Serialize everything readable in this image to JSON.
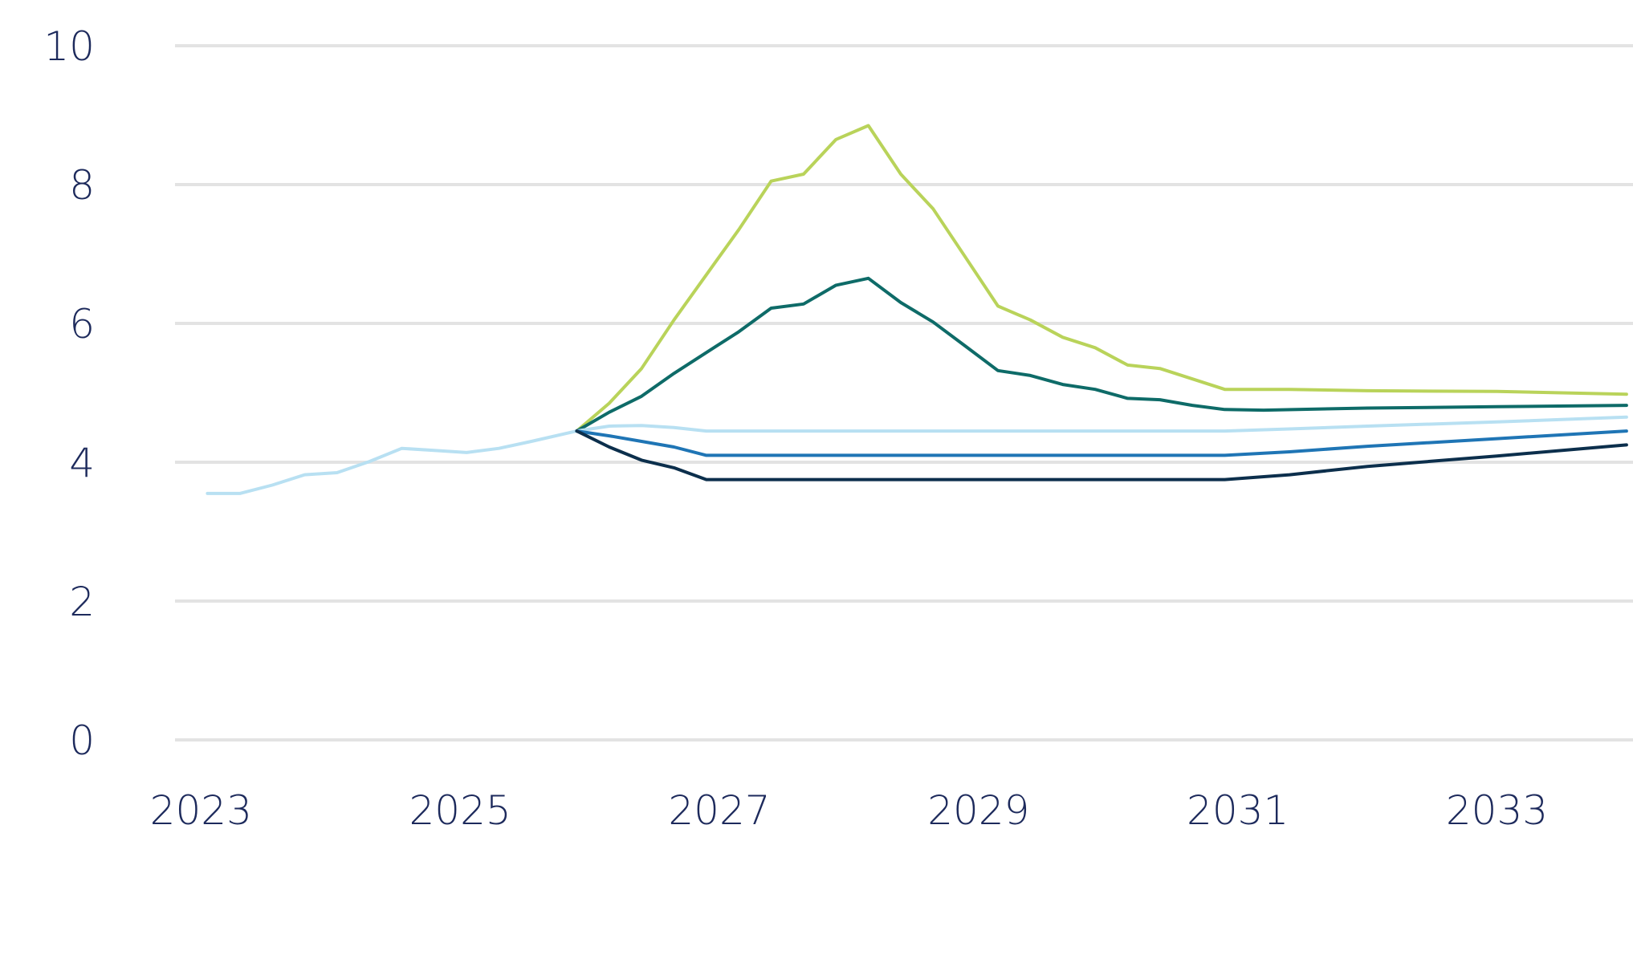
{
  "chart_data": {
    "type": "line",
    "title": "",
    "xlabel": "",
    "ylabel": "",
    "xlim": [
      2022.8,
      2034.05
    ],
    "ylim": [
      0,
      10
    ],
    "grid": true,
    "legend": "none",
    "y_ticks": [
      {
        "value": 0,
        "label": "0"
      },
      {
        "value": 2,
        "label": "2"
      },
      {
        "value": 4,
        "label": "4"
      },
      {
        "value": 6,
        "label": "6"
      },
      {
        "value": 8,
        "label": "8"
      },
      {
        "value": 10,
        "label": "10"
      }
    ],
    "x_ticks": [
      {
        "value": 2023,
        "label": "2023"
      },
      {
        "value": 2025,
        "label": "2025"
      },
      {
        "value": 2027,
        "label": "2027"
      },
      {
        "value": 2029,
        "label": "2029"
      },
      {
        "value": 2031,
        "label": "2031"
      },
      {
        "value": 2033,
        "label": "2033"
      }
    ],
    "series": [
      {
        "color": "#b9d35a",
        "points": [
          [
            2025.9,
            4.45
          ],
          [
            2026.15,
            4.85
          ],
          [
            2026.4,
            5.35
          ],
          [
            2026.65,
            6.05
          ],
          [
            2026.9,
            6.7
          ],
          [
            2027.15,
            7.35
          ],
          [
            2027.4,
            8.05
          ],
          [
            2027.65,
            8.15
          ],
          [
            2027.9,
            8.65
          ],
          [
            2028.15,
            8.85
          ],
          [
            2028.4,
            8.15
          ],
          [
            2028.65,
            7.65
          ],
          [
            2028.9,
            6.95
          ],
          [
            2029.15,
            6.25
          ],
          [
            2029.4,
            6.05
          ],
          [
            2029.65,
            5.8
          ],
          [
            2029.9,
            5.65
          ],
          [
            2030.15,
            5.4
          ],
          [
            2030.4,
            5.35
          ],
          [
            2030.65,
            5.2
          ],
          [
            2030.9,
            5.05
          ],
          [
            2031.4,
            5.05
          ],
          [
            2032.0,
            5.03
          ],
          [
            2033.0,
            5.02
          ],
          [
            2034.0,
            4.98
          ]
        ]
      },
      {
        "color": "#0e6b68",
        "points": [
          [
            2025.9,
            4.45
          ],
          [
            2026.15,
            4.72
          ],
          [
            2026.4,
            4.95
          ],
          [
            2026.65,
            5.28
          ],
          [
            2026.9,
            5.58
          ],
          [
            2027.15,
            5.88
          ],
          [
            2027.4,
            6.22
          ],
          [
            2027.65,
            6.28
          ],
          [
            2027.9,
            6.55
          ],
          [
            2028.15,
            6.65
          ],
          [
            2028.4,
            6.3
          ],
          [
            2028.65,
            6.02
          ],
          [
            2028.9,
            5.67
          ],
          [
            2029.15,
            5.32
          ],
          [
            2029.4,
            5.25
          ],
          [
            2029.65,
            5.12
          ],
          [
            2029.9,
            5.05
          ],
          [
            2030.15,
            4.92
          ],
          [
            2030.4,
            4.9
          ],
          [
            2030.65,
            4.82
          ],
          [
            2030.9,
            4.76
          ],
          [
            2031.2,
            4.75
          ],
          [
            2032.0,
            4.78
          ],
          [
            2033.0,
            4.8
          ],
          [
            2034.0,
            4.82
          ]
        ]
      },
      {
        "color": "#b8e0f2",
        "points": [
          [
            2023.05,
            3.55
          ],
          [
            2023.3,
            3.55
          ],
          [
            2023.55,
            3.67
          ],
          [
            2023.8,
            3.82
          ],
          [
            2024.05,
            3.85
          ],
          [
            2024.3,
            4.01
          ],
          [
            2024.55,
            4.2
          ],
          [
            2024.8,
            4.17
          ],
          [
            2025.05,
            4.14
          ],
          [
            2025.3,
            4.2
          ],
          [
            2025.55,
            4.3
          ],
          [
            2025.9,
            4.45
          ],
          [
            2026.15,
            4.52
          ],
          [
            2026.4,
            4.53
          ],
          [
            2026.65,
            4.5
          ],
          [
            2026.9,
            4.45
          ],
          [
            2027.4,
            4.45
          ],
          [
            2028.0,
            4.45
          ],
          [
            2029.0,
            4.45
          ],
          [
            2030.0,
            4.45
          ],
          [
            2030.9,
            4.45
          ],
          [
            2031.4,
            4.48
          ],
          [
            2032.0,
            4.52
          ],
          [
            2033.0,
            4.58
          ],
          [
            2034.0,
            4.65
          ]
        ]
      },
      {
        "color": "#1f75b5",
        "points": [
          [
            2025.9,
            4.45
          ],
          [
            2026.15,
            4.38
          ],
          [
            2026.4,
            4.3
          ],
          [
            2026.65,
            4.22
          ],
          [
            2026.9,
            4.1
          ],
          [
            2027.4,
            4.1
          ],
          [
            2028.0,
            4.1
          ],
          [
            2029.0,
            4.1
          ],
          [
            2030.0,
            4.1
          ],
          [
            2030.9,
            4.1
          ],
          [
            2031.4,
            4.15
          ],
          [
            2032.0,
            4.23
          ],
          [
            2033.0,
            4.34
          ],
          [
            2034.0,
            4.45
          ]
        ]
      },
      {
        "color": "#0c2f4c",
        "points": [
          [
            2025.9,
            4.45
          ],
          [
            2026.15,
            4.22
          ],
          [
            2026.4,
            4.03
          ],
          [
            2026.65,
            3.92
          ],
          [
            2026.9,
            3.75
          ],
          [
            2027.4,
            3.75
          ],
          [
            2028.0,
            3.75
          ],
          [
            2029.0,
            3.75
          ],
          [
            2030.0,
            3.75
          ],
          [
            2030.9,
            3.75
          ],
          [
            2031.4,
            3.82
          ],
          [
            2032.0,
            3.94
          ],
          [
            2033.0,
            4.09
          ],
          [
            2034.0,
            4.25
          ]
        ]
      }
    ]
  }
}
